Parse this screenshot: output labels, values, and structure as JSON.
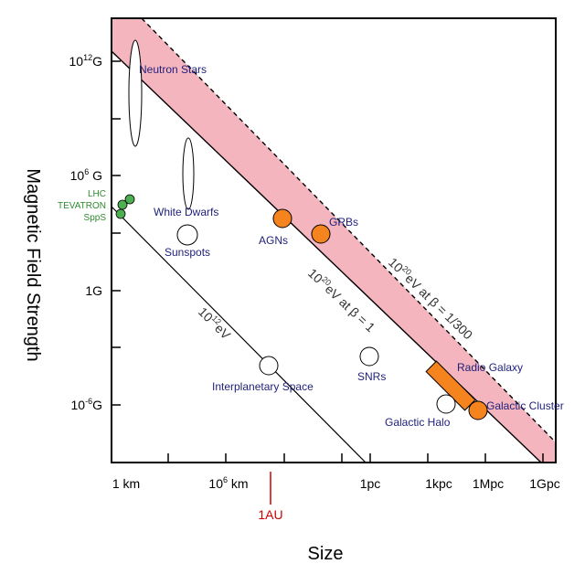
{
  "x_axis": {
    "title": "Size",
    "ticks": [
      {
        "id": "1km",
        "label": "1 km"
      },
      {
        "id": "1e6km",
        "label": "10",
        "sup": "6",
        "suffix": " km"
      },
      {
        "id": "1pc",
        "label": "1pc"
      },
      {
        "id": "1kpc",
        "label": "1kpc"
      },
      {
        "id": "1Mpc",
        "label": "1Mpc"
      },
      {
        "id": "1Gpc",
        "label": "1Gpc"
      }
    ],
    "marker": {
      "label": "1AU",
      "color": "#cc0000"
    }
  },
  "y_axis": {
    "title": "Magnetic Field Strength",
    "ticks": [
      {
        "id": "1e12G",
        "label": "10",
        "sup": "12",
        "suffix": "G"
      },
      {
        "id": "1e6G",
        "label": "10",
        "sup": "6",
        "suffix": " G"
      },
      {
        "id": "1G",
        "label": "1G"
      },
      {
        "id": "1e-6G",
        "label": "10",
        "sup": "-6",
        "suffix": "G"
      }
    ]
  },
  "lines": {
    "beta1": {
      "pre": "10",
      "sup": "20",
      "post": "eV at β = 1"
    },
    "beta300": {
      "pre": "10",
      "sup": "20",
      "post": "eV at β = 1/300"
    },
    "e12": {
      "pre": "10",
      "sup": "12",
      "post": "eV"
    }
  },
  "sources": {
    "neutron_stars": "Neutron Stars",
    "white_dwarfs": "White Dwarfs",
    "sunspots": "Sunspots",
    "agns": "AGNs",
    "grbs": "GRBs",
    "interplanetary": "Interplanetary Space",
    "snrs": "SNRs",
    "galactic_halo": "Galactic Halo",
    "radio_galaxy": "Radio Galaxy",
    "galactic_cluster": "Galactic Cluster"
  },
  "accelerators": [
    "LHC",
    "TEVATRON",
    "SppS"
  ],
  "colors": {
    "band": "#f4b5bf",
    "source_fill": "#f5841f",
    "accelerator_fill": "#4caf50",
    "label_text": "#1f1f7a",
    "accelerator_text": "#2e8b2e"
  }
}
